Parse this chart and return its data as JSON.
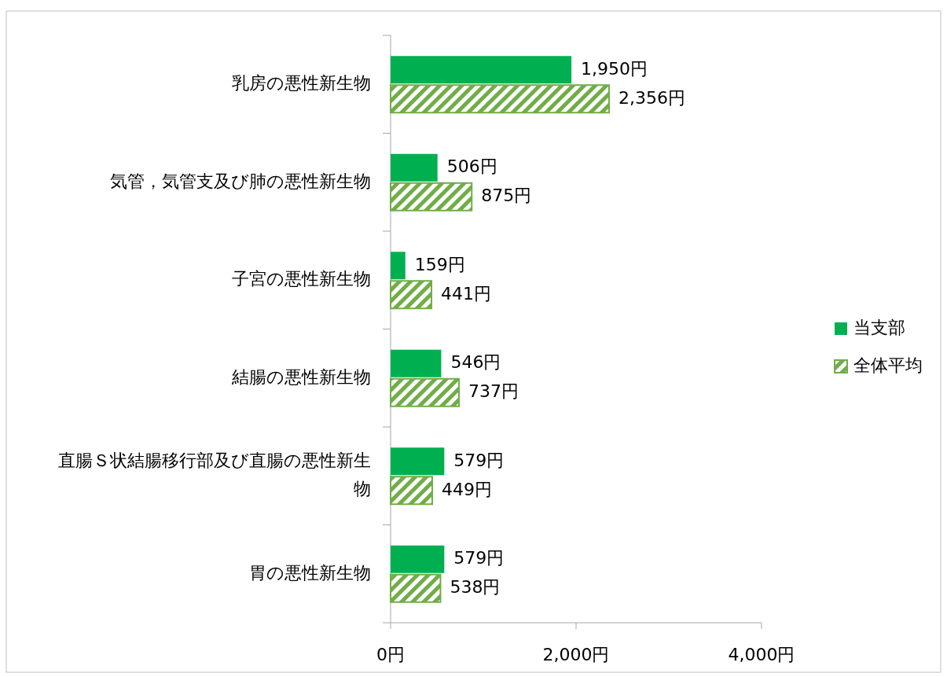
{
  "chart_data": {
    "type": "bar",
    "orientation": "horizontal",
    "categories": [
      "乳房の悪性新生物",
      "気管，気管支及び肺の悪性新生物",
      "子宮の悪性新生物",
      "結腸の悪性新生物",
      "直腸Ｓ状結腸移行部及び直腸の悪性新生物",
      "胃の悪性新生物"
    ],
    "series": [
      {
        "name": "当支部",
        "color": "#00b050",
        "values": [
          1950,
          506,
          159,
          546,
          579,
          579
        ],
        "value_labels": [
          "1,950円",
          "506円",
          "159円",
          "546円",
          "579円",
          "579円"
        ]
      },
      {
        "name": "全体平均",
        "color": "#70ad47",
        "values": [
          2356,
          875,
          441,
          737,
          449,
          538
        ],
        "value_labels": [
          "2,356円",
          "875円",
          "441円",
          "737円",
          "449円",
          "538円"
        ]
      }
    ],
    "xlim": [
      0,
      4000
    ],
    "xticks": [
      {
        "value": 0,
        "label": "0円"
      },
      {
        "value": 2000,
        "label": "2,000円"
      },
      {
        "value": 4000,
        "label": "4,000円"
      }
    ],
    "grid": false,
    "legend": "right"
  }
}
